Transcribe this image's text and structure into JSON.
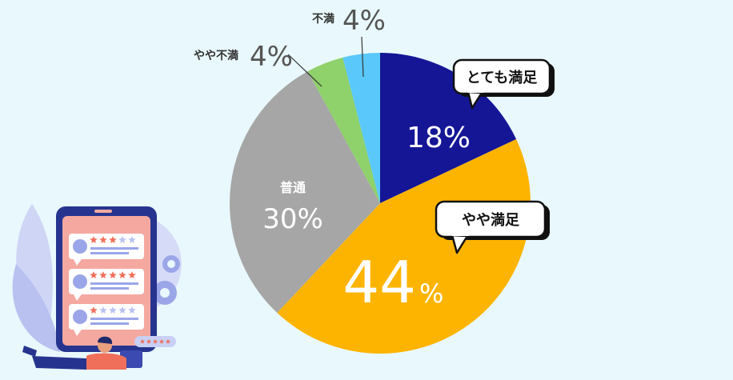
{
  "chart_data": {
    "type": "pie",
    "categories": [
      "とても満足",
      "やや満足",
      "普通",
      "やや不満",
      "不満"
    ],
    "values": [
      18,
      44,
      30,
      4,
      4
    ],
    "unit": "%",
    "colors": [
      "#141696",
      "#fdb400",
      "#a6a6a6",
      "#8fd16a",
      "#5ac8fa"
    ],
    "start_angle": "12 o'clock",
    "direction": "clockwise"
  },
  "labels": {
    "very_satisfied": {
      "name": "とても満足",
      "value": "18%"
    },
    "somewhat_satisfied": {
      "name": "やや満足",
      "value": "44",
      "unit": "%"
    },
    "neutral": {
      "name": "普通",
      "value": "30%"
    },
    "somewhat_dissatisfied": {
      "name": "やや不満",
      "value": "4%"
    },
    "dissatisfied": {
      "name": "不満",
      "value": "4%"
    }
  },
  "illustration": {
    "name": "phone-reviews-illustration",
    "review_stars": [
      3,
      5,
      1
    ],
    "stars_total": 5
  }
}
